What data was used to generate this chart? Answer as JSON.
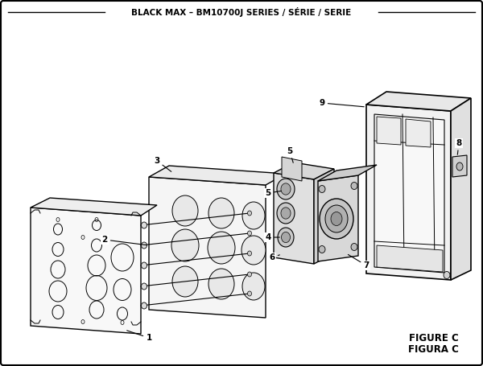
{
  "title": "BLACK MAX – BM10700J SERIES / SÉRIE / SERIE",
  "figure_label": "FIGURE C",
  "figura_label": "FIGURA C",
  "bg_color": "#ffffff",
  "border_color": "#000000",
  "line_color": "#000000",
  "title_fontsize": 7.5,
  "label_fontsize": 7.5
}
